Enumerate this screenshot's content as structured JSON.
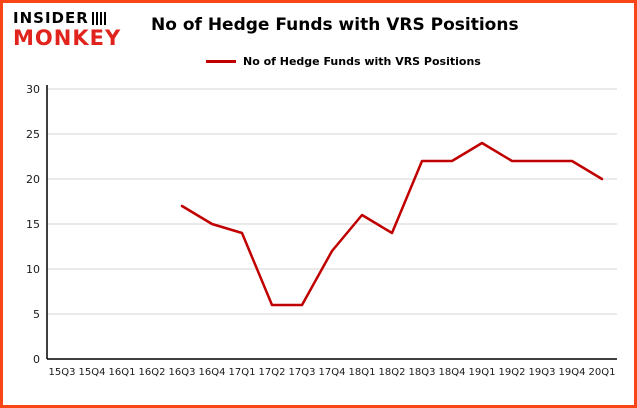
{
  "brand": {
    "name_top": "INSIDER",
    "name_bottom": "MONKEY"
  },
  "title": "No of Hedge Funds with VRS Positions",
  "legend": {
    "label": "No of Hedge Funds with VRS Positions"
  },
  "colors": {
    "border": "#fa4616",
    "brand_black": "#000000",
    "brand_red": "#e0231c",
    "line": "#c00000",
    "grid": "#d6d6d6",
    "axis": "#000000",
    "tick_text": "#1a1a1a"
  },
  "chart_data": {
    "type": "line",
    "title": "No of Hedge Funds with VRS Positions",
    "categories": [
      "15Q3",
      "15Q4",
      "16Q1",
      "16Q2",
      "16Q3",
      "16Q4",
      "17Q1",
      "17Q2",
      "17Q3",
      "17Q4",
      "18Q1",
      "18Q2",
      "18Q3",
      "18Q4",
      "19Q1",
      "19Q2",
      "19Q3",
      "19Q4",
      "20Q1"
    ],
    "series": [
      {
        "name": "No of Hedge Funds with VRS Positions",
        "values": [
          null,
          null,
          null,
          null,
          17,
          15,
          14,
          6,
          6,
          12,
          16,
          14,
          22,
          22,
          24,
          22,
          22,
          22,
          20
        ]
      }
    ],
    "xlabel": "",
    "ylabel": "",
    "ylim": [
      0,
      30
    ],
    "yticks": [
      0,
      5,
      10,
      15,
      20,
      25,
      30
    ],
    "grid": true,
    "legend_position": "top-left"
  }
}
